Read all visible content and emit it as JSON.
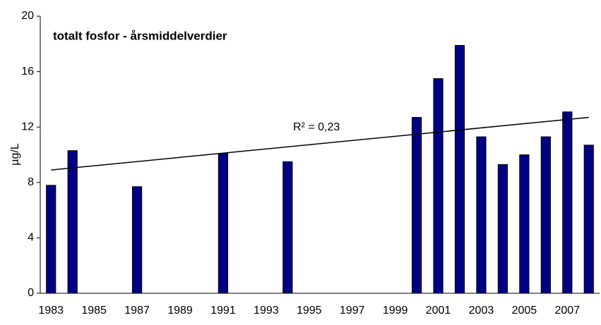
{
  "chart_data": {
    "type": "bar",
    "title": "totalt fosfor - årsmiddelverdier",
    "y_label": "µg/L",
    "categories": [
      "1983",
      null,
      "1985",
      null,
      "1987",
      null,
      "1989",
      null,
      "1991",
      null,
      "1993",
      null,
      "1995",
      null,
      "1997",
      null,
      "1999",
      null,
      "2001",
      null,
      "2003",
      null,
      "2005",
      null,
      "2007",
      null
    ],
    "values": [
      7.8,
      10.3,
      null,
      null,
      7.7,
      null,
      null,
      null,
      10.1,
      null,
      null,
      9.5,
      null,
      null,
      null,
      null,
      null,
      12.7,
      15.5,
      17.9,
      11.3,
      9.3,
      10.0,
      11.3,
      13.1,
      10.7
    ],
    "color": "#000080",
    "ylim": [
      0,
      20
    ],
    "yticks": [
      0,
      4,
      8,
      12,
      16,
      20
    ],
    "trendline": {
      "values": [
        8.9,
        12.7
      ],
      "label": "R² = 0,23"
    }
  }
}
